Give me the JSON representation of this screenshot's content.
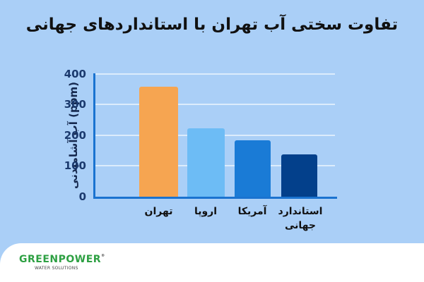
{
  "title": "تفاوت سختی آب تهران با استانداردهای جهانی",
  "chart_data": {
    "type": "bar",
    "title": "تفاوت سختی آب تهران با استانداردهای جهانی",
    "xlabel": "",
    "ylabel": "آب آشامیدنی (ppm)",
    "ylim": [
      0,
      400
    ],
    "yticks": [
      0,
      100,
      200,
      300,
      400
    ],
    "grid": true,
    "categories": [
      "تهران",
      "اروپا",
      "آمریکا",
      "استاندارد جهانی"
    ],
    "values": [
      360,
      225,
      185,
      140
    ],
    "colors": [
      "#f6a551",
      "#6dbcf5",
      "#1a7bd6",
      "#03408b"
    ]
  },
  "axis": {
    "ylabel": "آب آشامیدنی (ppm)",
    "yticks": [
      "400",
      "300",
      "200",
      "100",
      "0"
    ]
  },
  "labels": {
    "tehran": "تهران",
    "europe": "اروپا",
    "america": "آمریکا",
    "global_line1": "استاندارد",
    "global_line2": "جهانی"
  },
  "logo": {
    "name": "GREENPOWER",
    "registered": "®",
    "tagline": "WATER SOLUTIONS"
  }
}
